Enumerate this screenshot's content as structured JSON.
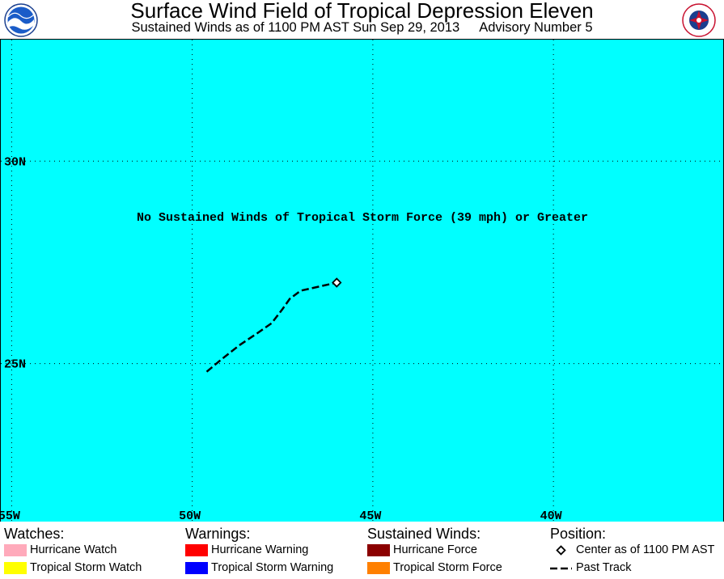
{
  "header": {
    "title": "Surface Wind Field of Tropical Depression Eleven",
    "subtitle_time": "Sustained Winds as of 1100 PM AST Sun Sep 29, 2013",
    "subtitle_advisory": "Advisory Number 5",
    "left_logo_text": "NOAA",
    "right_logo_text": "NATIONAL WEATHER SERVICE"
  },
  "map": {
    "background_color": "#00ffff",
    "extent": {
      "lon_west": -55.3,
      "lon_east": -35.3,
      "lat_south": 21.1,
      "lat_north": 33.0
    },
    "longitude_ticks": [
      -55,
      -50,
      -45,
      -40
    ],
    "latitude_ticks": [
      30,
      25
    ],
    "longitude_labels": [
      "55W",
      "50W",
      "45W",
      "40W"
    ],
    "latitude_labels": [
      "30N",
      "25N"
    ],
    "notice": "No Sustained Winds of Tropical Storm Force (39 mph) or Greater",
    "past_track": [
      {
        "lon": -49.6,
        "lat": 24.8
      },
      {
        "lon": -49.2,
        "lat": 25.1
      },
      {
        "lon": -48.7,
        "lat": 25.45
      },
      {
        "lon": -48.2,
        "lat": 25.75
      },
      {
        "lon": -47.8,
        "lat": 26.0
      },
      {
        "lon": -47.5,
        "lat": 26.35
      },
      {
        "lon": -47.3,
        "lat": 26.6
      },
      {
        "lon": -47.0,
        "lat": 26.8
      },
      {
        "lon": -46.5,
        "lat": 26.9
      },
      {
        "lon": -46.0,
        "lat": 27.0
      }
    ],
    "center": {
      "lon": -46.0,
      "lat": 27.0
    }
  },
  "legend": {
    "watches": {
      "heading": "Watches:",
      "items": [
        {
          "label": "Hurricane Watch",
          "color": "#ffaabb"
        },
        {
          "label": "Tropical Storm Watch",
          "color": "#ffff00"
        }
      ]
    },
    "warnings": {
      "heading": "Warnings:",
      "items": [
        {
          "label": "Hurricane Warning",
          "color": "#ff0000"
        },
        {
          "label": "Tropical Storm Warning",
          "color": "#0000ff"
        }
      ]
    },
    "winds": {
      "heading": "Sustained Winds:",
      "items": [
        {
          "label": "Hurricane Force",
          "color": "#8b0000"
        },
        {
          "label": "Tropical Storm Force",
          "color": "#ff8000"
        }
      ]
    },
    "position": {
      "heading": "Position:",
      "center_label": "Center as of 1100 PM AST",
      "track_label": "Past Track"
    }
  }
}
